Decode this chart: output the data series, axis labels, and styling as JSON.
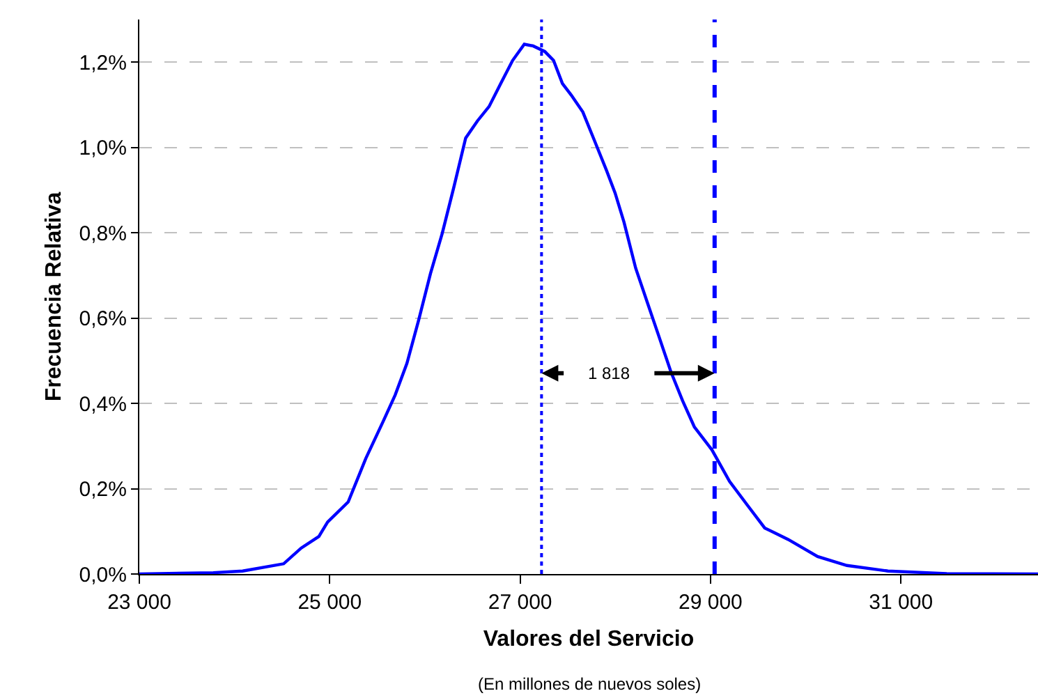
{
  "chart_data": {
    "type": "line",
    "xlabel": "Valores del Servicio",
    "ylabel": "Frecuencia Relativa",
    "annotations": [
      "(En millones de nuevos soles)",
      "1 818"
    ],
    "series": [
      {
        "color": "#0000ff",
        "x": [
          23000,
          23777,
          24085,
          24516,
          24701,
          24886,
          24978,
          25194,
          25379,
          25564,
          25688,
          25811,
          25934,
          26058,
          26181,
          26304,
          26428,
          26551,
          26674,
          26797,
          26921,
          27044,
          27136,
          27259,
          27351,
          27444,
          27536,
          27659,
          27783,
          27906,
          27998,
          28091,
          28214,
          28337,
          28461,
          28584,
          28707,
          28830,
          29015,
          29200,
          29385,
          29569,
          29816,
          30125,
          30433,
          30864,
          31481,
          32440
        ],
        "values": [
          0,
          0.003,
          0.007,
          0.024,
          0.061,
          0.088,
          0.122,
          0.169,
          0.271,
          0.359,
          0.42,
          0.494,
          0.595,
          0.704,
          0.798,
          0.907,
          1.022,
          1.062,
          1.096,
          1.15,
          1.204,
          1.242,
          1.238,
          1.225,
          1.204,
          1.15,
          1.123,
          1.083,
          1.015,
          0.947,
          0.893,
          0.825,
          0.717,
          0.636,
          0.555,
          0.474,
          0.406,
          0.345,
          0.291,
          0.217,
          0.162,
          0.108,
          0.081,
          0.041,
          0.02,
          0.007,
          0.001,
          0
        ]
      }
    ],
    "ref_lines": [
      {
        "axis": "x",
        "value": 27225,
        "label": null,
        "color": "#0000ff",
        "line_style": "dotted"
      },
      {
        "axis": "x",
        "value": 29043,
        "label": null,
        "color": "#0000ff",
        "line_style": "dashed"
      }
    ],
    "xlim": [
      23000,
      32440
    ],
    "ylim": [
      0,
      1.3
    ],
    "xticks": [
      {
        "value": 23000,
        "label": "23 000"
      },
      {
        "value": 25000,
        "label": "25 000"
      },
      {
        "value": 27000,
        "label": "27 000"
      },
      {
        "value": 29000,
        "label": "29 000"
      },
      {
        "value": 31000,
        "label": "31 000"
      }
    ],
    "yticks": [
      {
        "value": 0,
        "label": "0,0%"
      },
      {
        "value": 0.2,
        "label": "0,2%"
      },
      {
        "value": 0.4,
        "label": "0,4%"
      },
      {
        "value": 0.6,
        "label": "0,6%"
      },
      {
        "value": 0.8,
        "label": "0,8%"
      },
      {
        "value": 1.0,
        "label": "1,0%"
      },
      {
        "value": 1.2,
        "label": "1,2%"
      }
    ],
    "grid": "y",
    "line_style": "solid"
  }
}
